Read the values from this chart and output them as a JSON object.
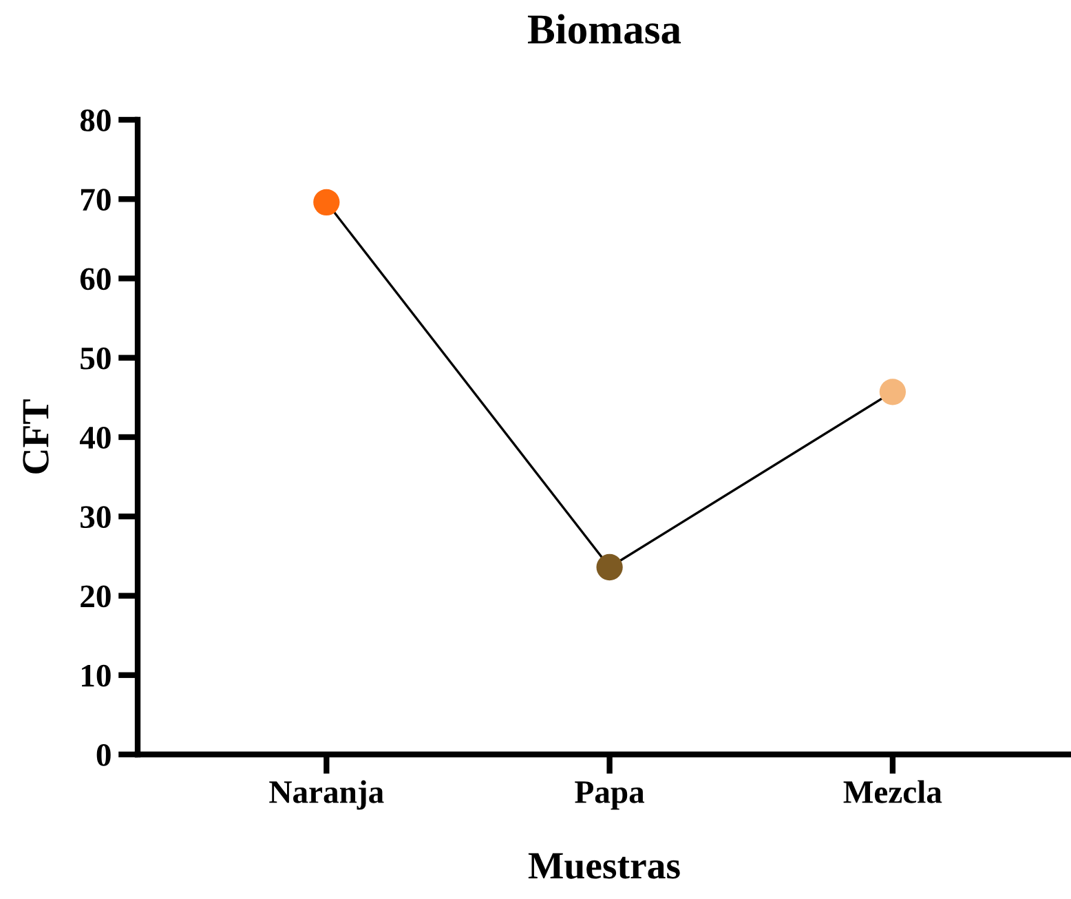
{
  "chart_data": {
    "type": "line",
    "title": "Biomasa",
    "xlabel": "Muestras",
    "ylabel": "CFT",
    "categories": [
      "Naranja",
      "Papa",
      "Mezcla"
    ],
    "series": [
      {
        "color": "#000000",
        "colors": [
          "#ff6a0d",
          "#7d5a22",
          "#f5b77c"
        ],
        "values": [
          69.6,
          23.6,
          45.7
        ]
      }
    ],
    "ylim": [
      0,
      80
    ],
    "yticks": [
      0,
      10,
      20,
      30,
      40,
      50,
      60,
      70,
      80
    ],
    "grid": false,
    "legend": false,
    "marker": "circle",
    "line_style": "solid"
  }
}
